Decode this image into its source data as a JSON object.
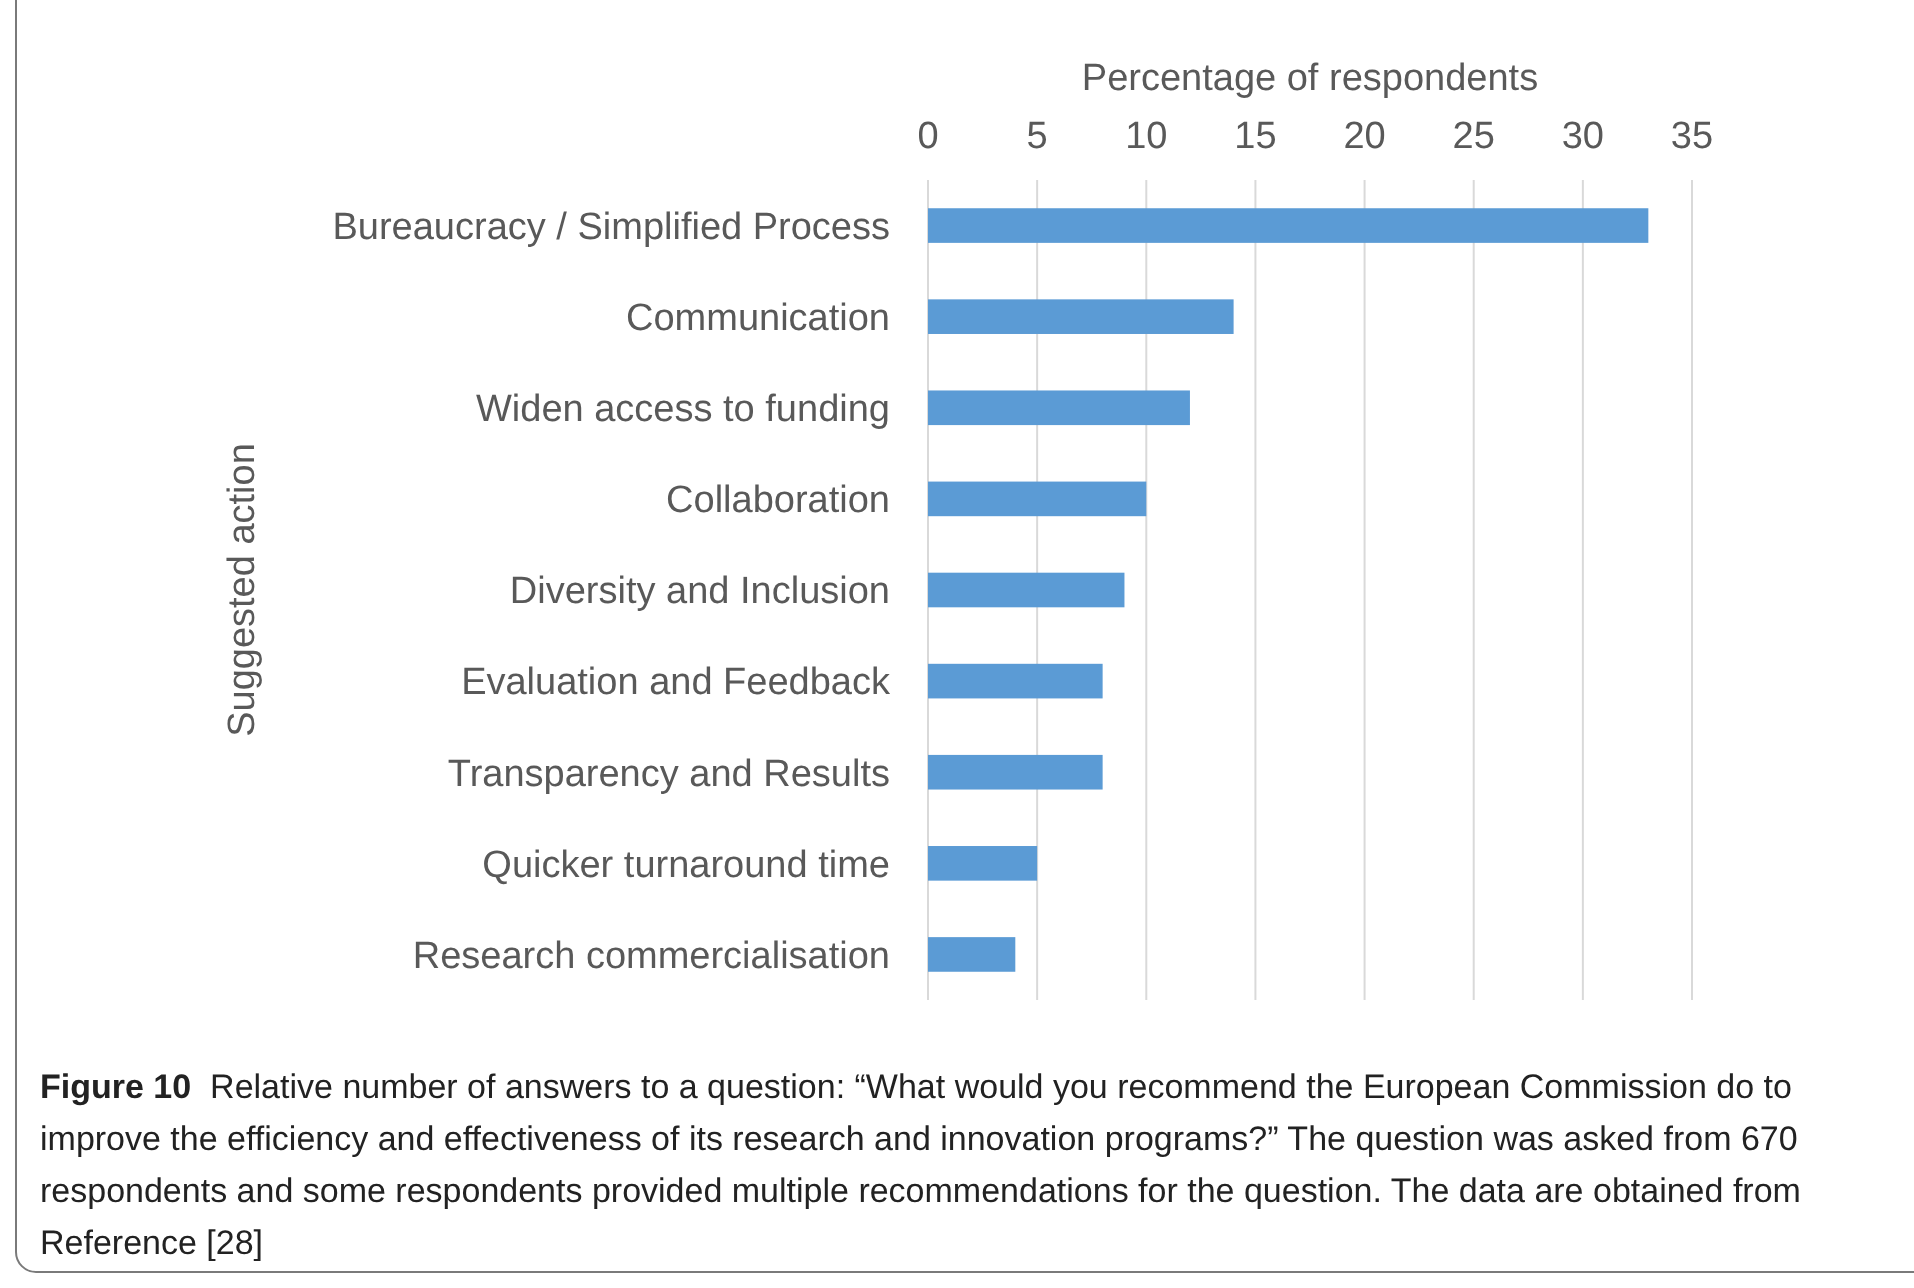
{
  "chart_data": {
    "type": "bar",
    "orientation": "horizontal",
    "xlabel": "Percentage of respondents",
    "ylabel": "Suggested action",
    "categories": [
      "Bureaucracy / Simplified Process",
      "Communication",
      "Widen access to funding",
      "Collaboration",
      "Diversity and Inclusion",
      "Evaluation and Feedback",
      "Transparency and Results",
      "Quicker turnaround time",
      "Research commercialisation"
    ],
    "values": [
      33,
      14,
      12,
      10,
      9,
      8,
      8,
      5,
      4
    ],
    "color": "#5b9bd5",
    "xlim": [
      0,
      35
    ],
    "xticks": [
      0,
      5,
      10,
      15,
      20,
      25,
      30,
      35
    ],
    "grid": "x",
    "annotations": [
      "Figure 10",
      "Relative number of answers to a question: “What would you recommend the European Commission do to improve the efficiency and effectiveness of its research and innovation programs?” The question was asked from 670 respondents and some respondents provided multiple recommendations for the question. The data are obtained from Reference [28]"
    ]
  }
}
